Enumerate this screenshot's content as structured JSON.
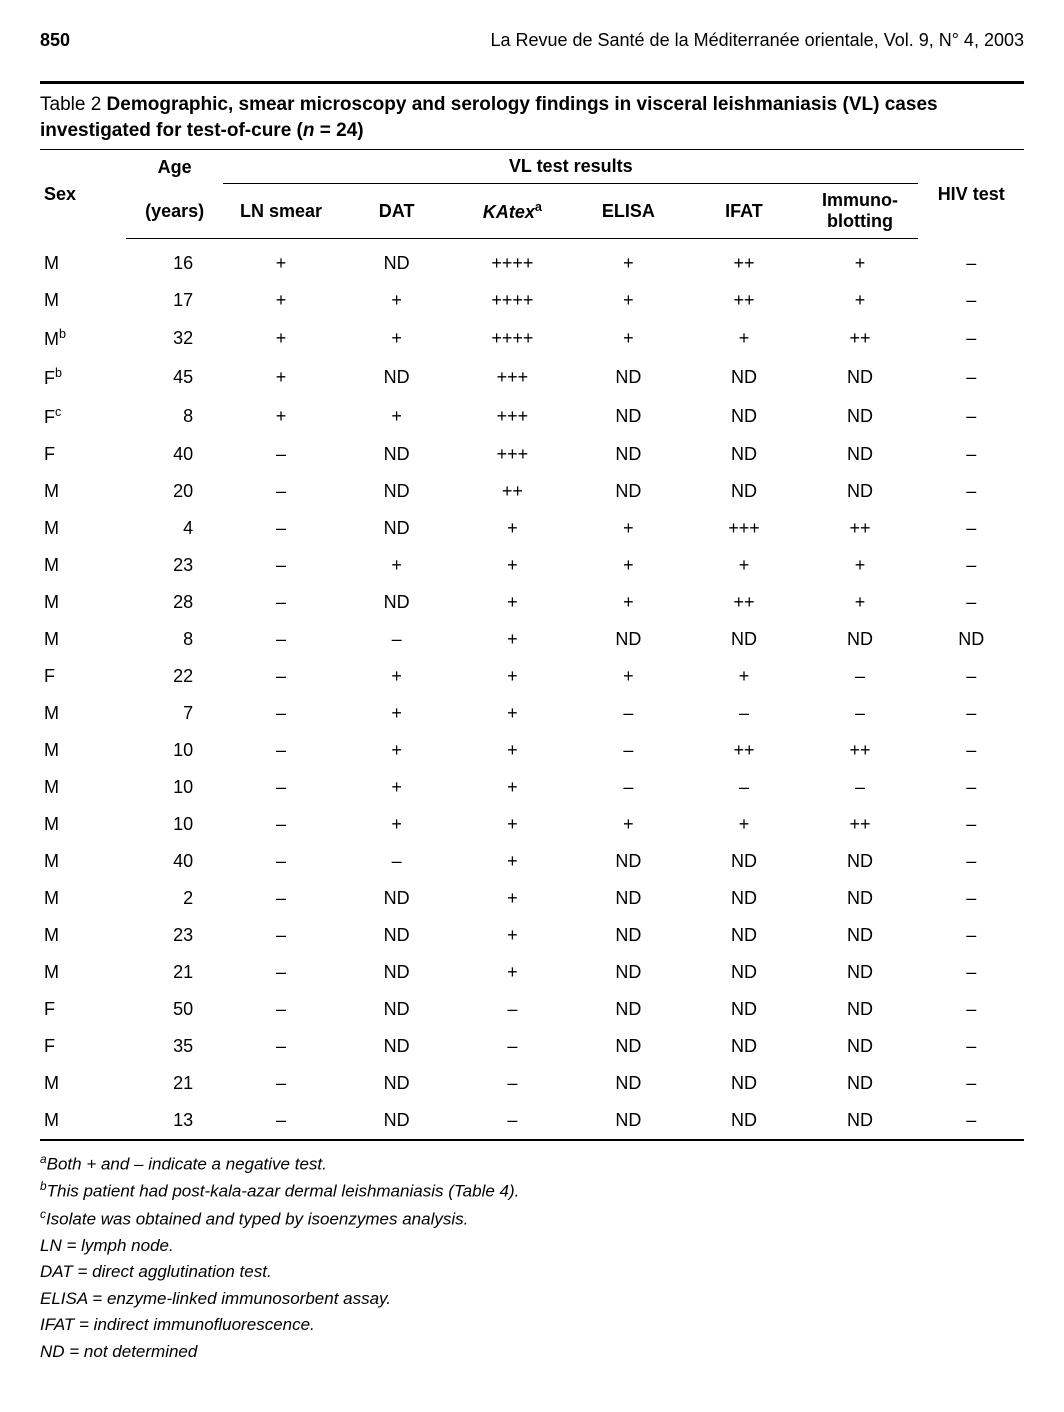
{
  "header": {
    "page_number": "850",
    "journal": "La Revue de Santé de la Méditerranée orientale, Vol. 9, N° 4, 2003"
  },
  "caption": {
    "prefix": "Table 2 ",
    "title_part1": "Demographic, smear microscopy and serology findings in visceral leishmaniasis (VL) cases investigated for test-of-cure (",
    "n_label": "n",
    "n_value": " = 24)"
  },
  "columns": {
    "sex": "Sex",
    "age": "Age",
    "age_unit": "(years)",
    "vl_header": "VL test results",
    "ln_smear": "LN smear",
    "dat": "DAT",
    "katex": "KAtex",
    "katex_sup": "a",
    "elisa": "ELISA",
    "ifat": "IFAT",
    "immuno": "Immuno-",
    "immuno2": "blotting",
    "hiv": "HIV test"
  },
  "rows": [
    {
      "sex": "M",
      "sup": "",
      "age": "16",
      "ln": "+",
      "dat": "ND",
      "katex": "++++",
      "elisa": "+",
      "ifat": "++",
      "immuno": "+",
      "hiv": "–"
    },
    {
      "sex": "M",
      "sup": "",
      "age": "17",
      "ln": "+",
      "dat": "+",
      "katex": "++++",
      "elisa": "+",
      "ifat": "++",
      "immuno": "+",
      "hiv": "–"
    },
    {
      "sex": "M",
      "sup": "b",
      "age": "32",
      "ln": "+",
      "dat": "+",
      "katex": "++++",
      "elisa": "+",
      "ifat": "+",
      "immuno": "++",
      "hiv": "–"
    },
    {
      "sex": "F",
      "sup": "b",
      "age": "45",
      "ln": "+",
      "dat": "ND",
      "katex": "+++",
      "elisa": "ND",
      "ifat": "ND",
      "immuno": "ND",
      "hiv": "–"
    },
    {
      "sex": "F",
      "sup": "c",
      "age": "8",
      "ln": "+",
      "dat": "+",
      "katex": "+++",
      "elisa": "ND",
      "ifat": "ND",
      "immuno": "ND",
      "hiv": "–"
    },
    {
      "sex": "F",
      "sup": "",
      "age": "40",
      "ln": "–",
      "dat": "ND",
      "katex": "+++",
      "elisa": "ND",
      "ifat": "ND",
      "immuno": "ND",
      "hiv": "–"
    },
    {
      "sex": "M",
      "sup": "",
      "age": "20",
      "ln": "–",
      "dat": "ND",
      "katex": "++",
      "elisa": "ND",
      "ifat": "ND",
      "immuno": "ND",
      "hiv": "–"
    },
    {
      "sex": "M",
      "sup": "",
      "age": "4",
      "ln": "–",
      "dat": "ND",
      "katex": "+",
      "elisa": "+",
      "ifat": "+++",
      "immuno": "++",
      "hiv": "–"
    },
    {
      "sex": "M",
      "sup": "",
      "age": "23",
      "ln": "–",
      "dat": "+",
      "katex": "+",
      "elisa": "+",
      "ifat": "+",
      "immuno": "+",
      "hiv": "–"
    },
    {
      "sex": "M",
      "sup": "",
      "age": "28",
      "ln": "–",
      "dat": "ND",
      "katex": "+",
      "elisa": "+",
      "ifat": "++",
      "immuno": "+",
      "hiv": "–"
    },
    {
      "sex": "M",
      "sup": "",
      "age": "8",
      "ln": "–",
      "dat": "–",
      "katex": "+",
      "elisa": "ND",
      "ifat": "ND",
      "immuno": "ND",
      "hiv": "ND"
    },
    {
      "sex": "F",
      "sup": "",
      "age": "22",
      "ln": "–",
      "dat": "+",
      "katex": "+",
      "elisa": "+",
      "ifat": "+",
      "immuno": "–",
      "hiv": "–"
    },
    {
      "sex": "M",
      "sup": "",
      "age": "7",
      "ln": "–",
      "dat": "+",
      "katex": "+",
      "elisa": "–",
      "ifat": "–",
      "immuno": "–",
      "hiv": "–"
    },
    {
      "sex": "M",
      "sup": "",
      "age": "10",
      "ln": "–",
      "dat": "+",
      "katex": "+",
      "elisa": "–",
      "ifat": "++",
      "immuno": "++",
      "hiv": "–"
    },
    {
      "sex": "M",
      "sup": "",
      "age": "10",
      "ln": "–",
      "dat": "+",
      "katex": "+",
      "elisa": "–",
      "ifat": "–",
      "immuno": "–",
      "hiv": "–"
    },
    {
      "sex": "M",
      "sup": "",
      "age": "10",
      "ln": "–",
      "dat": "+",
      "katex": "+",
      "elisa": "+",
      "ifat": "+",
      "immuno": "++",
      "hiv": "–"
    },
    {
      "sex": "M",
      "sup": "",
      "age": "40",
      "ln": "–",
      "dat": "–",
      "katex": "+",
      "elisa": "ND",
      "ifat": "ND",
      "immuno": "ND",
      "hiv": "–"
    },
    {
      "sex": "M",
      "sup": "",
      "age": "2",
      "ln": "–",
      "dat": "ND",
      "katex": "+",
      "elisa": "ND",
      "ifat": "ND",
      "immuno": "ND",
      "hiv": "–"
    },
    {
      "sex": "M",
      "sup": "",
      "age": "23",
      "ln": "–",
      "dat": "ND",
      "katex": "+",
      "elisa": "ND",
      "ifat": "ND",
      "immuno": "ND",
      "hiv": "–"
    },
    {
      "sex": "M",
      "sup": "",
      "age": "21",
      "ln": "–",
      "dat": "ND",
      "katex": "+",
      "elisa": "ND",
      "ifat": "ND",
      "immuno": "ND",
      "hiv": "–"
    },
    {
      "sex": "F",
      "sup": "",
      "age": "50",
      "ln": "–",
      "dat": "ND",
      "katex": "–",
      "elisa": "ND",
      "ifat": "ND",
      "immuno": "ND",
      "hiv": "–"
    },
    {
      "sex": "F",
      "sup": "",
      "age": "35",
      "ln": "–",
      "dat": "ND",
      "katex": "–",
      "elisa": "ND",
      "ifat": "ND",
      "immuno": "ND",
      "hiv": "–"
    },
    {
      "sex": "M",
      "sup": "",
      "age": "21",
      "ln": "–",
      "dat": "ND",
      "katex": "–",
      "elisa": "ND",
      "ifat": "ND",
      "immuno": "ND",
      "hiv": "–"
    },
    {
      "sex": "M",
      "sup": "",
      "age": "13",
      "ln": "–",
      "dat": "ND",
      "katex": "–",
      "elisa": "ND",
      "ifat": "ND",
      "immuno": "ND",
      "hiv": "–"
    }
  ],
  "footnotes": {
    "a": {
      "sup": "a",
      "text": "Both + and – indicate a negative test."
    },
    "b": {
      "sup": "b",
      "text": "This patient had post-kala-azar dermal leishmaniasis (Table 4)."
    },
    "c": {
      "sup": "c",
      "text": "Isolate was obtained and typed by isoenzymes analysis."
    },
    "ln": "LN = lymph node.",
    "dat": "DAT = direct agglutination test.",
    "elisa": "ELISA = enzyme-linked immunosorbent assay.",
    "ifat": "IFAT = indirect immunofluorescence.",
    "nd": "ND = not determined"
  }
}
